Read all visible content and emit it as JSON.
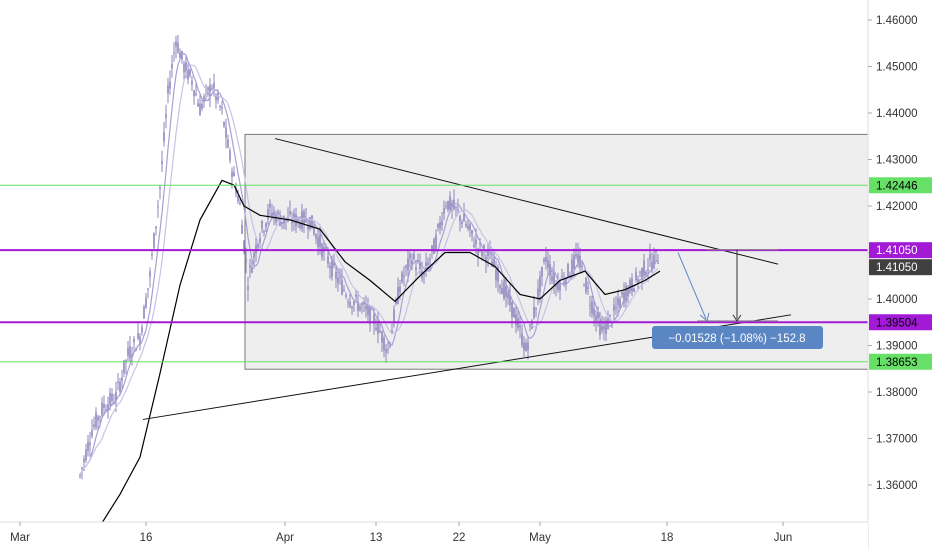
{
  "chart_data": {
    "type": "candlestick",
    "x_ticks": [
      "Mar",
      "16",
      "Apr",
      "13",
      "22",
      "May",
      "18",
      "Jun"
    ],
    "y_ticks": [
      "1.46000",
      "1.45000",
      "1.44000",
      "1.43000",
      "1.42000",
      "1.41000",
      "1.40000",
      "1.39000",
      "1.38000",
      "1.37000",
      "1.36000"
    ],
    "ylim": [
      1.3505,
      1.4645
    ],
    "grid": false,
    "price_colors": {
      "candle": "#8f85bd",
      "ma_fast": "#a79fd3",
      "ma_slow": "#c8c2e6",
      "ma_long": "#000000"
    },
    "horizontal_levels": [
      {
        "value": 1.42446,
        "label": "1.42446",
        "color": "#66e066",
        "label_color": "#000000"
      },
      {
        "value": 1.4105,
        "label": "1.41050",
        "color": "#a21ad6",
        "label_color": "#ffffff"
      },
      {
        "value": 1.395,
        "label": "1.39504",
        "color": "#a21ad6",
        "label_color": "#000000"
      },
      {
        "value": 1.3865,
        "label": "1.38653",
        "color": "#66e066",
        "label_color": "#000000"
      }
    ],
    "current_price": {
      "value": 1.4105,
      "label": "1.41050",
      "color": "#404040"
    },
    "range_box": {
      "top": 1.4354,
      "bottom": 1.3849,
      "color": "#eeeeee"
    },
    "measurement": {
      "text": "−0.01528 (−1.08%) −152.8",
      "from": 1.4106,
      "to": 1.3953,
      "color": "#5b86c4"
    }
  }
}
